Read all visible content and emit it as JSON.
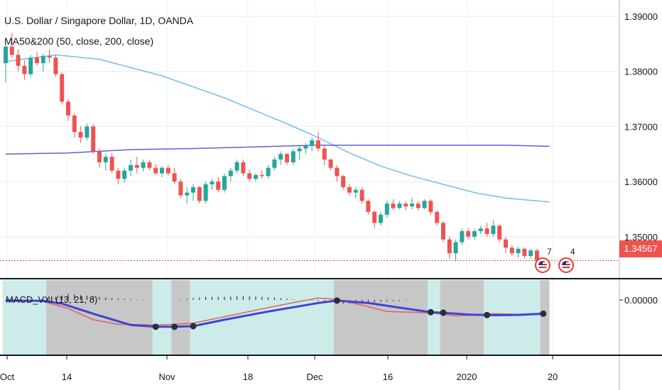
{
  "title": "U.S. Dollar / Singapore Dollar, 1D, OANDA",
  "indicator": "MA50&200 (50, close, 200, close)",
  "macd_label": "MACD_VXI (13, 21, 8)",
  "last_price": "1.34567",
  "events": [
    {
      "icon": "us-flag-icon",
      "count": "7"
    },
    {
      "icon": "us-flag-icon",
      "count": "4"
    }
  ],
  "colors": {
    "up": "#26a69a",
    "down": "#ef5350",
    "ma50": "#6fbfee",
    "ma200": "#5b63d6",
    "macd_main": "#3f43d8",
    "macd_signal": "#e0605a",
    "band_teal": "#cdebe8",
    "band_gray": "#c7c7c7"
  },
  "chart_data": [
    {
      "type": "candlestick",
      "title": "U.S. Dollar / Singapore Dollar, 1D, OANDA",
      "y_ticks": [
        "1.39000",
        "1.38000",
        "1.37000",
        "1.36000",
        "1.35000"
      ],
      "ylim": [
        1.3425,
        1.3935
      ],
      "x_ticks": [
        "Oct",
        "14",
        "Nov",
        "18",
        "Dec",
        "16",
        "2020",
        "20"
      ],
      "grid": true,
      "candles": [
        [
          1.3815,
          1.385,
          1.378,
          1.3845
        ],
        [
          1.3845,
          1.387,
          1.3825,
          1.383
        ],
        [
          1.383,
          1.384,
          1.38,
          1.381
        ],
        [
          1.381,
          1.382,
          1.3785,
          1.3795
        ],
        [
          1.3795,
          1.383,
          1.379,
          1.3825
        ],
        [
          1.3825,
          1.3835,
          1.381,
          1.3815
        ],
        [
          1.3815,
          1.3832,
          1.38,
          1.3828
        ],
        [
          1.3828,
          1.384,
          1.3815,
          1.3825
        ],
        [
          1.3825,
          1.383,
          1.379,
          1.3795
        ],
        [
          1.3795,
          1.3798,
          1.374,
          1.3745
        ],
        [
          1.3745,
          1.375,
          1.371,
          1.372
        ],
        [
          1.372,
          1.3725,
          1.368,
          1.369
        ],
        [
          1.369,
          1.37,
          1.367,
          1.368
        ],
        [
          1.368,
          1.3705,
          1.3675,
          1.37
        ],
        [
          1.37,
          1.3705,
          1.365,
          1.3655
        ],
        [
          1.3655,
          1.366,
          1.3625,
          1.3635
        ],
        [
          1.3635,
          1.365,
          1.362,
          1.3645
        ],
        [
          1.3645,
          1.3652,
          1.3615,
          1.362
        ],
        [
          1.362,
          1.3625,
          1.3595,
          1.3605
        ],
        [
          1.3605,
          1.3625,
          1.3598,
          1.362
        ],
        [
          1.362,
          1.364,
          1.361,
          1.363
        ],
        [
          1.363,
          1.3645,
          1.3615,
          1.3625
        ],
        [
          1.3625,
          1.364,
          1.3618,
          1.3635
        ],
        [
          1.3635,
          1.364,
          1.362,
          1.3625
        ],
        [
          1.3625,
          1.3632,
          1.3612,
          1.3615
        ],
        [
          1.3615,
          1.3628,
          1.3608,
          1.3625
        ],
        [
          1.3625,
          1.363,
          1.361,
          1.3615
        ],
        [
          1.3615,
          1.3625,
          1.3595,
          1.36
        ],
        [
          1.36,
          1.3605,
          1.357,
          1.3575
        ],
        [
          1.3575,
          1.359,
          1.356,
          1.358
        ],
        [
          1.358,
          1.3595,
          1.3565,
          1.359
        ],
        [
          1.359,
          1.3592,
          1.356,
          1.3565
        ],
        [
          1.3565,
          1.36,
          1.356,
          1.3595
        ],
        [
          1.3595,
          1.3605,
          1.3585,
          1.36
        ],
        [
          1.36,
          1.3608,
          1.358,
          1.3585
        ],
        [
          1.3585,
          1.3615,
          1.358,
          1.361
        ],
        [
          1.361,
          1.3625,
          1.36,
          1.362
        ],
        [
          1.362,
          1.364,
          1.3615,
          1.3635
        ],
        [
          1.3635,
          1.364,
          1.361,
          1.3615
        ],
        [
          1.3615,
          1.3622,
          1.36,
          1.3605
        ],
        [
          1.3605,
          1.3615,
          1.36,
          1.3612
        ],
        [
          1.3612,
          1.362,
          1.3605,
          1.361
        ],
        [
          1.361,
          1.363,
          1.3605,
          1.3625
        ],
        [
          1.3625,
          1.3645,
          1.362,
          1.364
        ],
        [
          1.364,
          1.3655,
          1.363,
          1.365
        ],
        [
          1.365,
          1.3652,
          1.363,
          1.3635
        ],
        [
          1.3635,
          1.366,
          1.363,
          1.3655
        ],
        [
          1.3655,
          1.3665,
          1.364,
          1.366
        ],
        [
          1.366,
          1.367,
          1.365,
          1.3665
        ],
        [
          1.3665,
          1.368,
          1.3655,
          1.3675
        ],
        [
          1.3675,
          1.369,
          1.3655,
          1.366
        ],
        [
          1.366,
          1.3665,
          1.363,
          1.364
        ],
        [
          1.364,
          1.3642,
          1.362,
          1.3625
        ],
        [
          1.3625,
          1.363,
          1.36,
          1.361
        ],
        [
          1.361,
          1.3612,
          1.3585,
          1.359
        ],
        [
          1.359,
          1.3595,
          1.3575,
          1.358
        ],
        [
          1.358,
          1.359,
          1.357,
          1.3585
        ],
        [
          1.3585,
          1.359,
          1.356,
          1.3565
        ],
        [
          1.3565,
          1.3568,
          1.354,
          1.3545
        ],
        [
          1.3545,
          1.3548,
          1.3515,
          1.3525
        ],
        [
          1.3525,
          1.3545,
          1.352,
          1.354
        ],
        [
          1.354,
          1.3565,
          1.3535,
          1.356
        ],
        [
          1.356,
          1.3568,
          1.3548,
          1.3552
        ],
        [
          1.3552,
          1.3565,
          1.355,
          1.356
        ],
        [
          1.356,
          1.3565,
          1.3548,
          1.3555
        ],
        [
          1.3555,
          1.357,
          1.355,
          1.356
        ],
        [
          1.356,
          1.3565,
          1.3548,
          1.3552
        ],
        [
          1.3552,
          1.3568,
          1.355,
          1.3565
        ],
        [
          1.3565,
          1.3568,
          1.354,
          1.3545
        ],
        [
          1.3545,
          1.3548,
          1.352,
          1.3525
        ],
        [
          1.3525,
          1.3528,
          1.349,
          1.3495
        ],
        [
          1.3495,
          1.35,
          1.346,
          1.347
        ],
        [
          1.347,
          1.3495,
          1.3455,
          1.349
        ],
        [
          1.349,
          1.3515,
          1.3485,
          1.351
        ],
        [
          1.351,
          1.3515,
          1.3495,
          1.35
        ],
        [
          1.35,
          1.3515,
          1.3495,
          1.351
        ],
        [
          1.351,
          1.352,
          1.3505,
          1.3515
        ],
        [
          1.3515,
          1.3525,
          1.35,
          1.3505
        ],
        [
          1.3505,
          1.353,
          1.35,
          1.352
        ],
        [
          1.352,
          1.3522,
          1.349,
          1.3495
        ],
        [
          1.3495,
          1.35,
          1.347,
          1.348
        ],
        [
          1.348,
          1.3485,
          1.3465,
          1.347
        ],
        [
          1.347,
          1.3482,
          1.3462,
          1.3478
        ],
        [
          1.3478,
          1.348,
          1.346,
          1.3465
        ],
        [
          1.3465,
          1.3478,
          1.346,
          1.3475
        ],
        [
          1.3475,
          1.3478,
          1.3455,
          1.3457
        ]
      ],
      "series": [
        {
          "name": "MA50",
          "values": [
            [
              0,
              1.3818
            ],
            [
              8,
              1.383
            ],
            [
              15,
              1.3822
            ],
            [
              25,
              1.3792
            ],
            [
              35,
              1.3752
            ],
            [
              45,
              1.3705
            ],
            [
              50,
              1.368
            ],
            [
              55,
              1.3652
            ],
            [
              60,
              1.3628
            ],
            [
              65,
              1.361
            ],
            [
              70,
              1.3595
            ],
            [
              75,
              1.358
            ],
            [
              80,
              1.357
            ],
            [
              87,
              1.3563
            ]
          ]
        },
        {
          "name": "MA200",
          "values": [
            [
              0,
              1.365
            ],
            [
              10,
              1.3652
            ],
            [
              20,
              1.3658
            ],
            [
              30,
              1.366
            ],
            [
              40,
              1.3663
            ],
            [
              50,
              1.3666
            ],
            [
              60,
              1.3666
            ],
            [
              70,
              1.3666
            ],
            [
              80,
              1.3666
            ],
            [
              87,
              1.3664
            ]
          ]
        }
      ]
    },
    {
      "type": "line",
      "title": "MACD_VXI (13, 21, 8)",
      "y_ticks": [
        "0.00000"
      ],
      "ylim": [
        -1.0,
        0.2
      ],
      "bands": [
        {
          "from": 0,
          "to": 7,
          "color": "teal"
        },
        {
          "from": 7,
          "to": 24,
          "color": "gray"
        },
        {
          "from": 24,
          "to": 27,
          "color": "teal"
        },
        {
          "from": 27,
          "to": 30,
          "color": "gray"
        },
        {
          "from": 30,
          "to": 53,
          "color": "teal"
        },
        {
          "from": 53,
          "to": 68,
          "color": "gray"
        },
        {
          "from": 68,
          "to": 70,
          "color": "teal"
        },
        {
          "from": 70,
          "to": 77,
          "color": "gray"
        },
        {
          "from": 77,
          "to": 86,
          "color": "teal"
        },
        {
          "from": 86,
          "to": 87.5,
          "color": "gray"
        }
      ],
      "series": [
        {
          "name": "main",
          "values": [
            [
              0,
              -0.02
            ],
            [
              6,
              -0.03
            ],
            [
              9,
              -0.12
            ],
            [
              14,
              -0.45
            ],
            [
              20,
              -0.82
            ],
            [
              24,
              -0.88
            ],
            [
              27,
              -0.88
            ],
            [
              30,
              -0.86
            ],
            [
              35,
              -0.65
            ],
            [
              42,
              -0.38
            ],
            [
              50,
              -0.1
            ],
            [
              53,
              -0.02
            ],
            [
              58,
              -0.1
            ],
            [
              63,
              -0.25
            ],
            [
              68,
              -0.4
            ],
            [
              70,
              -0.42
            ],
            [
              74,
              -0.48
            ],
            [
              78,
              -0.5
            ],
            [
              82,
              -0.49
            ],
            [
              86,
              -0.45
            ]
          ]
        },
        {
          "name": "signal",
          "values": [
            [
              0,
              0.0
            ],
            [
              6,
              -0.05
            ],
            [
              10,
              -0.28
            ],
            [
              14,
              -0.65
            ],
            [
              18,
              -0.8
            ],
            [
              24,
              -0.82
            ],
            [
              27,
              -0.8
            ],
            [
              30,
              -0.76
            ],
            [
              35,
              -0.55
            ],
            [
              42,
              -0.25
            ],
            [
              47,
              -0.05
            ],
            [
              50,
              0.06
            ],
            [
              53,
              0.02
            ],
            [
              58,
              -0.22
            ],
            [
              61,
              -0.38
            ],
            [
              68,
              -0.42
            ],
            [
              72,
              -0.52
            ],
            [
              74,
              -0.5
            ],
            [
              78,
              -0.45
            ],
            [
              82,
              -0.47
            ],
            [
              86,
              -0.44
            ]
          ]
        }
      ],
      "cross_points": [
        24,
        27,
        30,
        53,
        68,
        70,
        77,
        86
      ],
      "histogram": [
        0,
        0,
        0,
        0,
        0,
        0,
        0.02,
        0.05,
        0.1,
        0.15,
        0.2,
        0.18,
        0.16,
        0.14,
        0.12,
        0.1,
        0.08,
        0.06,
        0.05,
        0.04,
        0.03,
        0.02,
        0.01,
        0.0,
        0.0,
        0.0,
        0.0,
        0.0,
        0.02,
        0.04,
        0.06,
        0.08,
        0.1,
        0.1,
        0.1,
        0.1,
        0.11,
        0.12,
        0.12,
        0.12,
        0.11,
        0.1,
        0.09,
        0.08,
        0.06,
        0.04,
        0.02,
        0.0,
        -0.01,
        -0.02,
        -0.04,
        -0.06,
        -0.08,
        -0.1,
        -0.12,
        -0.12,
        -0.11,
        -0.1,
        -0.09,
        -0.08,
        -0.06,
        -0.05,
        -0.04,
        -0.03,
        -0.02,
        -0.01,
        0.0,
        0.0,
        0.0,
        0.0,
        0.0,
        0.0,
        0.0,
        0.0,
        0.0,
        0.0,
        0.0,
        0.0,
        0.0,
        0.0,
        0.0,
        0.0,
        0.0,
        0.0,
        0.0,
        0.0,
        0.0,
        0.0
      ]
    }
  ]
}
